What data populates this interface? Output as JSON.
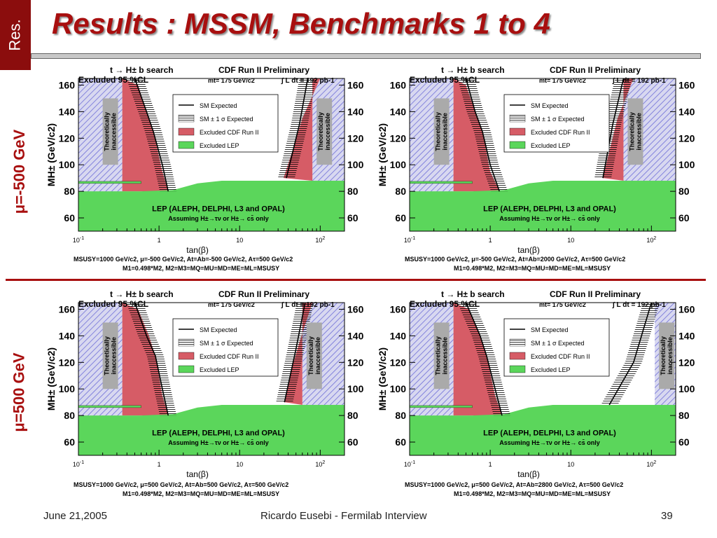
{
  "slide": {
    "tab_label": "Res.",
    "title": "Results : MSSM, Benchmarks 1 to 4",
    "row_labels": [
      "μ=-500 GeV",
      "μ=500 GeV"
    ]
  },
  "footer": {
    "date": "June 21,2005",
    "presenter": "Ricardo Eusebi - Fermilab Interview",
    "page": "39"
  },
  "colors": {
    "lep_green": "#5bd65b",
    "cdf_red": "#d65c66",
    "hatch_blue": "#6f6fd8",
    "accent": "#a80f0f"
  },
  "chart_data": [
    {
      "type": "area",
      "title": "t → H± b search",
      "subtitle": "CDF Run II Preliminary",
      "header_left": "Excluded 95 %CL",
      "header_mid": "mt= 175 GeV/c2",
      "header_right": "∫ L dt = 192 pb-1",
      "xlabel": "tan(β)",
      "ylabel": "MH± (GeV/c2)",
      "xscale": "log",
      "xlim": [
        0.1,
        200
      ],
      "ylim": [
        50,
        165
      ],
      "xticks": [
        "10-1",
        "1",
        "10",
        "102"
      ],
      "yticks": [
        60,
        80,
        100,
        120,
        140,
        160
      ],
      "legend": [
        "SM Expected",
        "SM ± 1 σ Expected",
        "Excluded CDF Run II",
        "Excluded LEP"
      ],
      "annotations": [
        "Theoretically inaccessible",
        "LEP (ALEPH, DELPHI, L3 and OPAL)",
        "Assuming H±→τν or H±→ cs̄ only"
      ],
      "params_line1": "MSUSY=1000 GeV/c2,    μ=-500 GeV/c2,    At=Ab=-500 GeV/c2,    Aτ=500 GeV/c2",
      "params_line2": "M1=0.498*M2,       M2=M3=MQ=MU=MD=ME=ML=MSUSY",
      "theory_low_x": 0.35,
      "theory_high_x": 80,
      "lep_top": [
        [
          0.1,
          80
        ],
        [
          0.6,
          80
        ],
        [
          1.5,
          81
        ],
        [
          3,
          86
        ],
        [
          6,
          88
        ],
        [
          200,
          88
        ]
      ],
      "cdf_low": [
        [
          0.35,
          165
        ],
        [
          0.55,
          160
        ],
        [
          0.7,
          140
        ],
        [
          0.85,
          125
        ],
        [
          1.1,
          95
        ],
        [
          1.3,
          80
        ]
      ],
      "cdf_high": [
        [
          100,
          165
        ],
        [
          60,
          135
        ],
        [
          45,
          110
        ],
        [
          35,
          90
        ]
      ],
      "expected_low": [
        [
          0.5,
          165
        ],
        [
          0.7,
          140
        ],
        [
          0.85,
          125
        ],
        [
          1.1,
          100
        ],
        [
          1.3,
          80
        ]
      ],
      "expected_high": [
        [
          38,
          90
        ],
        [
          55,
          130
        ],
        [
          70,
          165
        ]
      ]
    },
    {
      "type": "area",
      "title": "t → H± b search",
      "subtitle": "CDF Run II Preliminary",
      "header_left": "Excluded 95 %CL",
      "header_mid": "mt= 175 GeV/c2",
      "header_right": "∫ L dt = 192 pb-1",
      "xlabel": "tan(β)",
      "ylabel": "MH± (GeV/c2)",
      "xscale": "log",
      "xlim": [
        0.1,
        200
      ],
      "ylim": [
        50,
        165
      ],
      "xticks": [
        "10-1",
        "1",
        "10",
        "102"
      ],
      "yticks": [
        60,
        80,
        100,
        120,
        140,
        160
      ],
      "legend": [
        "SM Expected",
        "SM ± 1 σ Expected",
        "Excluded CDF Run II",
        "Excluded LEP"
      ],
      "annotations": [
        "Theoretically inaccessible",
        "LEP (ALEPH, DELPHI, L3 and OPAL)",
        "Assuming H±→τν or H±→ cs̄ only"
      ],
      "params_line1": "MSUSY=1000 GeV/c2,    μ=-500 GeV/c2,    At=Ab=2000 GeV/c2,    Aτ=500 GeV/c2",
      "params_line2": "M1=0.498*M2,       M2=M3=MQ=MU=MD=ME=ML=MSUSY",
      "theory_low_x": 0.35,
      "theory_high_x": 45,
      "lep_top": [
        [
          0.1,
          80
        ],
        [
          0.6,
          80
        ],
        [
          1.5,
          81
        ],
        [
          3,
          86
        ],
        [
          6,
          88
        ],
        [
          200,
          88
        ]
      ],
      "cdf_low": [
        [
          0.35,
          165
        ],
        [
          0.5,
          160
        ],
        [
          0.65,
          140
        ],
        [
          0.8,
          125
        ],
        [
          1.0,
          95
        ],
        [
          1.3,
          80
        ]
      ],
      "cdf_high": [
        [
          60,
          165
        ],
        [
          38,
          135
        ],
        [
          30,
          110
        ],
        [
          25,
          90
        ]
      ],
      "expected_low": [
        [
          0.5,
          165
        ],
        [
          0.65,
          140
        ],
        [
          0.8,
          125
        ],
        [
          1.0,
          100
        ],
        [
          1.3,
          80
        ]
      ],
      "expected_high": [
        [
          25,
          90
        ],
        [
          33,
          130
        ],
        [
          45,
          165
        ]
      ]
    },
    {
      "type": "area",
      "title": "t → H± b search",
      "subtitle": "CDF Run II Preliminary",
      "header_left": "Excluded 95 %CL",
      "header_mid": "mt= 175 GeV/c2",
      "header_right": "∫ L dt = 192 pb-1",
      "xlabel": "tan(β)",
      "ylabel": "MH± (GeV/c2)",
      "xscale": "log",
      "xlim": [
        0.1,
        200
      ],
      "ylim": [
        50,
        165
      ],
      "xticks": [
        "10-1",
        "1",
        "10",
        "102"
      ],
      "yticks": [
        60,
        80,
        100,
        120,
        140,
        160
      ],
      "legend": [
        "SM Expected",
        "SM ± 1 σ Expected",
        "Excluded CDF Run II",
        "Excluded LEP"
      ],
      "annotations": [
        "Theoretically inaccessible",
        "LEP (ALEPH, DELPHI, L3 and OPAL)",
        "Assuming H±→τν or H±→ cs̄ only"
      ],
      "params_line1": "MSUSY=1000 GeV/c2,    μ=500 GeV/c2,    At=Ab=500 GeV/c2,    Aτ=500 GeV/c2",
      "params_line2": "M1=0.498*M2,       M2=M3=MQ=MU=MD=ME=ML=MSUSY",
      "theory_low_x": 0.35,
      "theory_high_x": 60,
      "lep_top": [
        [
          0.1,
          80
        ],
        [
          0.6,
          80
        ],
        [
          1.5,
          81
        ],
        [
          3,
          86
        ],
        [
          6,
          88
        ],
        [
          200,
          88
        ]
      ],
      "cdf_low": [
        [
          0.35,
          165
        ],
        [
          0.55,
          160
        ],
        [
          0.75,
          140
        ],
        [
          0.9,
          125
        ],
        [
          1.1,
          95
        ],
        [
          1.3,
          80
        ]
      ],
      "cdf_high": [
        [
          80,
          165
        ],
        [
          55,
          135
        ],
        [
          42,
          110
        ],
        [
          36,
          90
        ]
      ],
      "expected_low": [
        [
          0.5,
          165
        ],
        [
          0.7,
          140
        ],
        [
          0.9,
          125
        ],
        [
          1.1,
          100
        ],
        [
          1.3,
          80
        ]
      ],
      "expected_high": [
        [
          36,
          90
        ],
        [
          50,
          130
        ],
        [
          65,
          165
        ]
      ]
    },
    {
      "type": "area",
      "title": "t → H± b search",
      "subtitle": "CDF Run II Preliminary",
      "header_left": "Excluded 95 %CL",
      "header_mid": "mt= 175 GeV/c2",
      "header_right": "∫ L dt = 192 pb-1",
      "xlabel": "tan(β)",
      "ylabel": "MH± (GeV/c2)",
      "xscale": "log",
      "xlim": [
        0.1,
        200
      ],
      "ylim": [
        50,
        165
      ],
      "xticks": [
        "10-1",
        "1",
        "10",
        "102"
      ],
      "yticks": [
        60,
        80,
        100,
        120,
        140,
        160
      ],
      "legend": [
        "SM Expected",
        "SM ± 1 σ Expected",
        "Excluded CDF Run II",
        "Excluded LEP"
      ],
      "annotations": [
        "Theoretically inaccessible",
        "LEP (ALEPH, DELPHI, L3 and OPAL)",
        "Assuming H±→τν or H±→ cs̄ only"
      ],
      "params_line1": "MSUSY=1000 GeV/c2,    μ=500 GeV/c2,    At=Ab=2800 GeV/c2,    Aτ=500 GeV/c2",
      "params_line2": "M1=0.498*M2,       M2=M3=MQ=MU=MD=ME=ML=MSUSY",
      "theory_low_x": 0.35,
      "theory_high_x": 110,
      "lep_top": [
        [
          0.1,
          80
        ],
        [
          0.6,
          80
        ],
        [
          1.5,
          81
        ],
        [
          3,
          86
        ],
        [
          6,
          88
        ],
        [
          200,
          88
        ]
      ],
      "cdf_low": [
        [
          0.35,
          165
        ],
        [
          0.55,
          160
        ],
        [
          0.75,
          140
        ],
        [
          0.9,
          125
        ],
        [
          1.15,
          95
        ],
        [
          1.4,
          80
        ]
      ],
      "cdf_high": [],
      "expected_low": [
        [
          0.5,
          165
        ],
        [
          0.75,
          140
        ],
        [
          0.9,
          125
        ],
        [
          1.15,
          100
        ],
        [
          1.4,
          80
        ]
      ],
      "expected_high": [
        [
          30,
          88
        ],
        [
          60,
          120
        ],
        [
          100,
          165
        ]
      ]
    }
  ]
}
